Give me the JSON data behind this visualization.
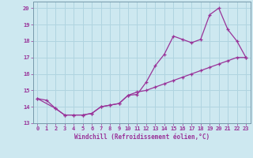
{
  "xlabel": "Windchill (Refroidissement éolien,°C)",
  "background_color": "#cde8f0",
  "grid_color": "#b0d4e0",
  "line_color": "#993399",
  "xlim": [
    -0.5,
    23.5
  ],
  "ylim": [
    13,
    20.4
  ],
  "yticks": [
    13,
    14,
    15,
    16,
    17,
    18,
    19,
    20
  ],
  "xticks": [
    0,
    1,
    2,
    3,
    4,
    5,
    6,
    7,
    8,
    9,
    10,
    11,
    12,
    13,
    14,
    15,
    16,
    17,
    18,
    19,
    20,
    21,
    22,
    23
  ],
  "line1_x": [
    0,
    1,
    2,
    3,
    4,
    5,
    6,
    7,
    8,
    9,
    10,
    11,
    12,
    13,
    14,
    15,
    16,
    17,
    18,
    19,
    20,
    21,
    22,
    23
  ],
  "line1_y": [
    14.5,
    14.4,
    13.9,
    13.5,
    13.5,
    13.5,
    13.6,
    14.0,
    14.1,
    14.2,
    14.7,
    14.75,
    15.5,
    16.5,
    17.2,
    18.3,
    18.1,
    17.9,
    18.1,
    19.6,
    20.0,
    18.7,
    18.0,
    17.0
  ],
  "line2_x": [
    0,
    2,
    3,
    4,
    5,
    6,
    7,
    8,
    9,
    10,
    11,
    12,
    13,
    14,
    15,
    16,
    17,
    18,
    19,
    20,
    21,
    22,
    23
  ],
  "line2_y": [
    14.5,
    13.9,
    13.5,
    13.5,
    13.5,
    13.6,
    14.0,
    14.1,
    14.2,
    14.7,
    14.9,
    15.0,
    15.2,
    15.4,
    15.6,
    15.8,
    16.0,
    16.2,
    16.4,
    16.6,
    16.8,
    17.0,
    17.0
  ]
}
